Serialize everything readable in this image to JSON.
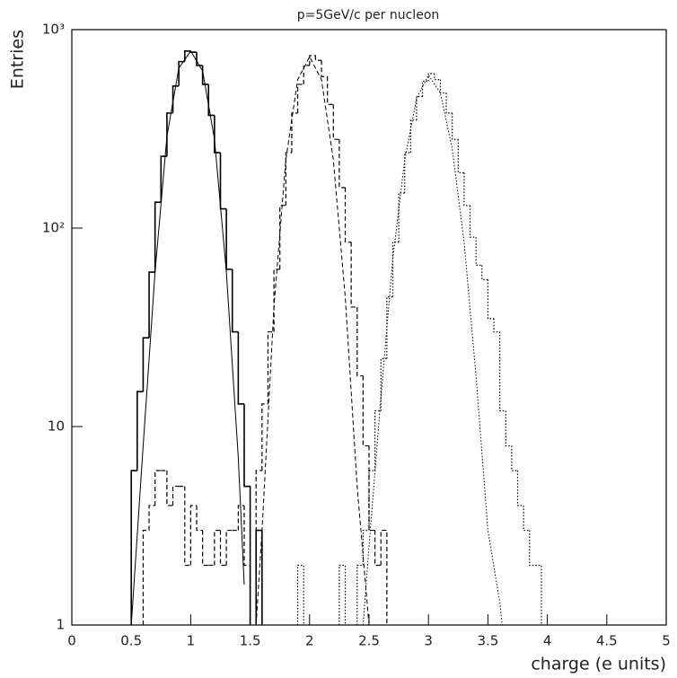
{
  "chart_data": {
    "type": "histogram",
    "title": "p=5GeV/c per nucleon",
    "x_label": "charge (e units)",
    "y_label": "Entries",
    "log_y": true,
    "xlim": [
      0,
      5
    ],
    "ylim": [
      1,
      1000
    ],
    "xticks": [
      0,
      0.5,
      1,
      1.5,
      2,
      2.5,
      3,
      3.5,
      4,
      4.5,
      5
    ],
    "yticks": [
      1,
      10,
      {
        "value": 100,
        "label": "10²"
      },
      {
        "value": 1000,
        "label": "10³"
      }
    ],
    "bins": [
      0.45,
      0.5,
      0.55,
      0.6,
      0.65,
      0.7,
      0.75,
      0.8,
      0.85,
      0.9,
      0.95,
      1.0,
      1.05,
      1.1,
      1.15,
      1.2,
      1.25,
      1.3,
      1.35,
      1.4,
      1.45,
      1.5,
      1.55,
      1.6,
      1.65,
      1.7,
      1.75,
      1.8,
      1.85,
      1.9,
      1.95,
      2.0,
      2.05,
      2.1,
      2.15,
      2.2,
      2.25,
      2.3,
      2.35,
      2.4,
      2.45,
      2.5,
      2.55,
      2.6,
      2.65,
      2.7,
      2.75,
      2.8,
      2.85,
      2.9,
      2.95,
      3.0,
      3.05,
      3.1,
      3.15,
      3.2,
      3.25,
      3.3,
      3.35,
      3.4,
      3.45,
      3.5,
      3.55,
      3.6,
      3.65,
      3.7,
      3.75,
      3.8,
      3.85,
      3.9,
      3.95,
      4.0
    ],
    "series": [
      {
        "style": "solid",
        "color": "#000000",
        "values": [
          null,
          6,
          15,
          28,
          60,
          135,
          230,
          380,
          520,
          690,
          780,
          770,
          660,
          530,
          370,
          240,
          125,
          62,
          30,
          13,
          5,
          null,
          3,
          null,
          null,
          null,
          null,
          null,
          null,
          null,
          null,
          null,
          null,
          null,
          null,
          null,
          null,
          null,
          null,
          null,
          null,
          null,
          null,
          null,
          null,
          null,
          null,
          null,
          null,
          null,
          null,
          null,
          null,
          null,
          null,
          null,
          null,
          null,
          null,
          null,
          null,
          null,
          null,
          null,
          null,
          null,
          null,
          null,
          null,
          null,
          null
        ]
      },
      {
        "style": "dashed",
        "color": "#000000",
        "values": [
          null,
          null,
          null,
          3,
          4,
          6,
          6,
          4,
          5,
          5,
          2,
          4,
          3,
          2,
          2,
          3,
          2,
          3,
          3,
          4,
          2,
          null,
          6,
          13,
          30,
          62,
          130,
          240,
          380,
          530,
          660,
          740,
          700,
          580,
          420,
          280,
          160,
          85,
          40,
          18,
          8,
          3,
          2,
          3,
          null,
          null,
          null,
          null,
          null,
          null,
          null,
          null,
          null,
          null,
          null,
          null,
          null,
          null,
          null,
          null,
          null,
          null,
          null,
          null,
          null,
          null,
          null,
          null,
          null,
          null,
          null
        ]
      },
      {
        "style": "dotted",
        "color": "#000000",
        "values": [
          null,
          null,
          null,
          null,
          null,
          null,
          null,
          null,
          null,
          null,
          null,
          null,
          null,
          null,
          null,
          null,
          null,
          null,
          null,
          null,
          null,
          null,
          null,
          null,
          null,
          null,
          null,
          null,
          null,
          2,
          null,
          null,
          null,
          null,
          null,
          null,
          2,
          null,
          null,
          2,
          3,
          6,
          12,
          22,
          45,
          85,
          150,
          240,
          350,
          460,
          550,
          600,
          560,
          480,
          380,
          280,
          190,
          130,
          90,
          65,
          55,
          35,
          30,
          12,
          8,
          6,
          4,
          3,
          2,
          2,
          null
        ]
      }
    ],
    "fits": [
      {
        "style": "solid",
        "color": "#000000",
        "x": [
          0.5,
          0.6,
          0.7,
          0.8,
          0.9,
          1.0,
          1.1,
          1.2,
          1.3,
          1.4,
          1.45
        ],
        "values": [
          1,
          8,
          60,
          290,
          640,
          780,
          620,
          280,
          60,
          7,
          1.6
        ]
      },
      {
        "style": "dashed",
        "color": "#000000",
        "x": [
          1.55,
          1.6,
          1.7,
          1.8,
          1.9,
          2.0,
          2.1,
          2.2,
          2.3,
          2.4,
          2.5
        ],
        "values": [
          1,
          3,
          40,
          220,
          560,
          730,
          560,
          220,
          45,
          5,
          1
        ]
      },
      {
        "style": "dotted",
        "color": "#000000",
        "x": [
          2.45,
          2.5,
          2.6,
          2.7,
          2.8,
          2.9,
          3.0,
          3.1,
          3.2,
          3.3,
          3.4,
          3.5,
          3.6,
          3.62
        ],
        "values": [
          1,
          2.5,
          14,
          70,
          220,
          450,
          590,
          480,
          250,
          85,
          18,
          3,
          1.3,
          1
        ]
      }
    ]
  }
}
